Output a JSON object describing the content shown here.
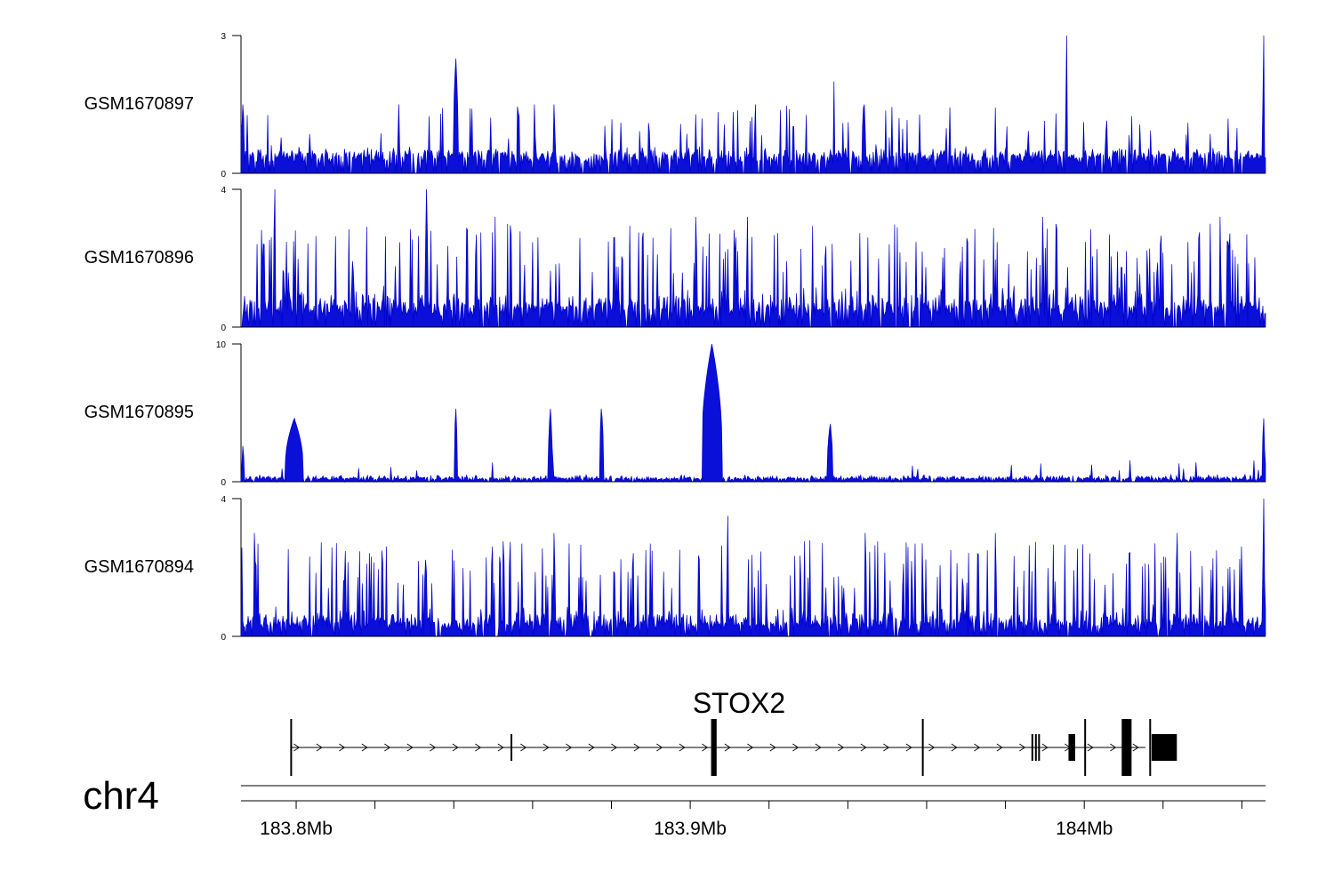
{
  "chart_data": {
    "type": "area",
    "chromosome": "chr4",
    "genome_range_mb": [
      183.786,
      184.046
    ],
    "genome_ticks_mb": [
      183.8,
      183.82,
      183.84,
      183.86,
      183.88,
      183.9,
      183.92,
      183.94,
      183.96,
      183.98,
      184.0,
      184.02,
      184.04
    ],
    "genome_tick_labels": [
      {
        "mb": 183.8,
        "label": "183.8Mb"
      },
      {
        "mb": 183.9,
        "label": "183.9Mb"
      },
      {
        "mb": 184.0,
        "label": "184Mb"
      }
    ],
    "track_color": "#0000cc",
    "track_fill": "#0a10d8",
    "series": [
      {
        "name": "GSM1670897",
        "ylim": [
          0,
          3
        ],
        "y_tick_labels": [
          "0",
          "3"
        ],
        "baseline_level": 0.45,
        "noise_level": 0.2,
        "spike_rate": 0.05,
        "spike_max": 1.5,
        "peaks": [
          {
            "mb": 183.7865,
            "value": 1.5,
            "width_mb": 0.0004
          },
          {
            "mb": 183.8405,
            "value": 2.5,
            "width_mb": 0.0006
          },
          {
            "mb": 183.826,
            "value": 1.5,
            "width_mb": 0.0002
          },
          {
            "mb": 183.8605,
            "value": 1.5,
            "width_mb": 0.0002
          },
          {
            "mb": 183.8655,
            "value": 1.5,
            "width_mb": 0.0002
          },
          {
            "mb": 183.9165,
            "value": 1.5,
            "width_mb": 0.0002
          },
          {
            "mb": 183.9365,
            "value": 2.0,
            "width_mb": 0.0002
          },
          {
            "mb": 183.9955,
            "value": 3.0,
            "width_mb": 0.0002
          },
          {
            "mb": 184.0455,
            "value": 3.0,
            "width_mb": 0.0002
          }
        ]
      },
      {
        "name": "GSM1670896",
        "ylim": [
          0,
          4
        ],
        "y_tick_labels": [
          "0",
          "4"
        ],
        "baseline_level": 0.6,
        "noise_level": 0.7,
        "spike_rate": 0.14,
        "spike_max": 3.0,
        "peaks": [
          {
            "mb": 183.7945,
            "value": 4.0,
            "width_mb": 0.0002
          },
          {
            "mb": 183.833,
            "value": 4.0,
            "width_mb": 0.0002
          },
          {
            "mb": 183.8505,
            "value": 3.2,
            "width_mb": 0.0002
          },
          {
            "mb": 183.9015,
            "value": 3.2,
            "width_mb": 0.0002
          },
          {
            "mb": 183.9145,
            "value": 3.2,
            "width_mb": 0.0002
          },
          {
            "mb": 183.9895,
            "value": 3.2,
            "width_mb": 0.0002
          },
          {
            "mb": 184.0345,
            "value": 3.2,
            "width_mb": 0.0002
          }
        ]
      },
      {
        "name": "GSM1670895",
        "ylim": [
          0,
          10
        ],
        "y_tick_labels": [
          "0",
          "10"
        ],
        "baseline_level": 0.25,
        "noise_level": 0.35,
        "spike_rate": 0.03,
        "spike_max": 1.6,
        "peaks": [
          {
            "mb": 183.7865,
            "value": 2.6,
            "width_mb": 0.0003
          },
          {
            "mb": 183.7995,
            "value": 4.6,
            "width_mb": 0.0022
          },
          {
            "mb": 183.8405,
            "value": 5.3,
            "width_mb": 0.0004
          },
          {
            "mb": 183.8645,
            "value": 5.3,
            "width_mb": 0.0005
          },
          {
            "mb": 183.8775,
            "value": 5.3,
            "width_mb": 0.0005
          },
          {
            "mb": 183.9055,
            "value": 10.0,
            "width_mb": 0.0025
          },
          {
            "mb": 183.9355,
            "value": 4.2,
            "width_mb": 0.0007
          },
          {
            "mb": 184.0455,
            "value": 4.6,
            "width_mb": 0.0003
          }
        ]
      },
      {
        "name": "GSM1670894",
        "ylim": [
          0,
          4
        ],
        "y_tick_labels": [
          "0",
          "4"
        ],
        "baseline_level": 0.4,
        "noise_level": 0.6,
        "spike_rate": 0.14,
        "spike_max": 2.8,
        "peaks": [
          {
            "mb": 183.7895,
            "value": 3.0,
            "width_mb": 0.0002
          },
          {
            "mb": 183.8655,
            "value": 3.0,
            "width_mb": 0.0002
          },
          {
            "mb": 183.9095,
            "value": 3.5,
            "width_mb": 0.0002
          },
          {
            "mb": 183.9445,
            "value": 3.0,
            "width_mb": 0.0002
          },
          {
            "mb": 183.9775,
            "value": 3.0,
            "width_mb": 0.0002
          },
          {
            "mb": 184.0235,
            "value": 3.0,
            "width_mb": 0.0002
          },
          {
            "mb": 184.0455,
            "value": 4.0,
            "width_mb": 0.0002
          }
        ]
      }
    ],
    "gene": {
      "name": "STOX2",
      "strand": "+",
      "start_mb": 183.7985,
      "end_mb": 184.0155,
      "exons": [
        {
          "start_mb": 183.7985,
          "end_mb": 183.7988,
          "tall": true
        },
        {
          "start_mb": 183.8544,
          "end_mb": 183.8547,
          "tall": false
        },
        {
          "start_mb": 183.9053,
          "end_mb": 183.9067,
          "tall": true
        },
        {
          "start_mb": 183.9588,
          "end_mb": 183.959,
          "tall": true
        },
        {
          "start_mb": 183.9866,
          "end_mb": 183.9868,
          "tall": false
        },
        {
          "start_mb": 183.9875,
          "end_mb": 183.9877,
          "tall": false
        },
        {
          "start_mb": 183.9883,
          "end_mb": 183.9885,
          "tall": false
        },
        {
          "start_mb": 183.996,
          "end_mb": 183.9977,
          "tall": false
        },
        {
          "start_mb": 184.0,
          "end_mb": 184.0003,
          "tall": true
        },
        {
          "start_mb": 184.0095,
          "end_mb": 184.012,
          "tall": true
        },
        {
          "start_mb": 184.0165,
          "end_mb": 184.0168,
          "tall": true
        },
        {
          "start_mb": 184.0171,
          "end_mb": 184.0235,
          "tall": false
        }
      ]
    }
  }
}
